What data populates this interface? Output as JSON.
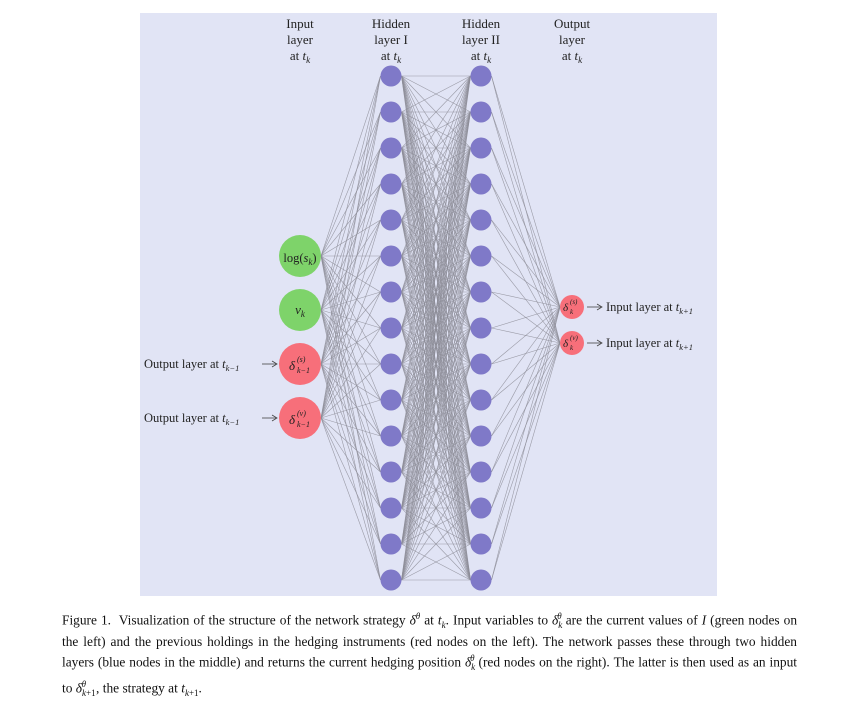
{
  "layer_headers": {
    "input": [
      "Input",
      "layer",
      "at t_k"
    ],
    "hidden1": [
      "Hidden",
      "layer I",
      "at t_k"
    ],
    "hidden2": [
      "Hidden",
      "layer II",
      "at t_k"
    ],
    "output": [
      "Output",
      "layer",
      "at t_k"
    ]
  },
  "input_nodes": [
    {
      "label": "log(s_k)",
      "group": "green"
    },
    {
      "label": "v_k",
      "group": "green"
    },
    {
      "label": "δ^(s)_k−1",
      "group": "red"
    },
    {
      "label": "δ^(v)_k−1",
      "group": "red"
    }
  ],
  "hidden_layer_1_count": 15,
  "hidden_layer_2_count": 15,
  "output_nodes": [
    {
      "label": "δ^(s)_k",
      "group": "red"
    },
    {
      "label": "δ^(v)_k",
      "group": "red"
    }
  ],
  "left_annotations": [
    "Output layer at t_k−1",
    "Output layer at t_k−1"
  ],
  "right_annotations": [
    "Input layer at t_k+1",
    "Input layer at t_k+1"
  ],
  "colors": {
    "background": "#e1e4f5",
    "green_node": "#7ed36a",
    "red_node": "#f76f7a",
    "blue_node": "#7f79c8",
    "edge": "#8d8d98"
  },
  "caption": "Figure 1. Visualization of the structure of the network strategy δ^θ at t_k. Input variables to δ^θ_k are the current values of I (green nodes on the left) and the previous holdings in the hedging instruments (red nodes on the left). The network passes these through two hidden layers (blue nodes in the middle) and returns the current hedging position δ^θ_k (red nodes on the right). The latter is then used as an input to δ^θ_k+1, the strategy at t_k+1."
}
